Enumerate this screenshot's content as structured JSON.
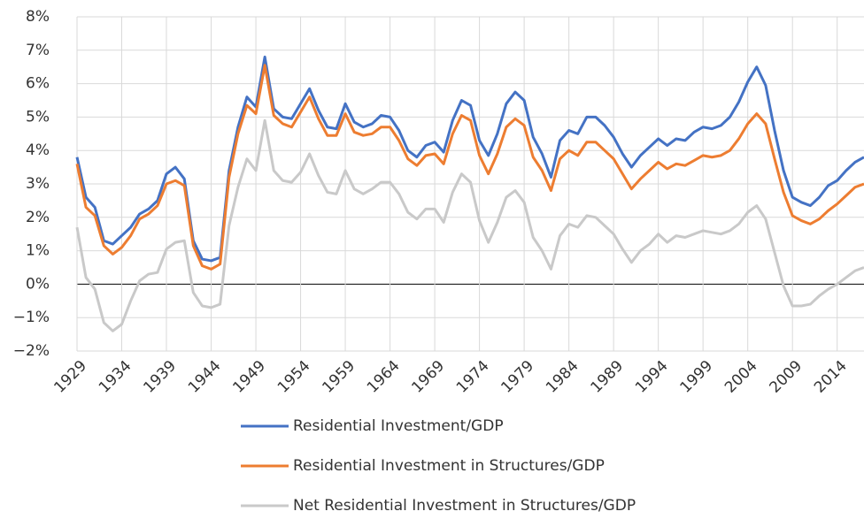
{
  "chart_data": {
    "type": "line",
    "x": [
      1929,
      1930,
      1931,
      1932,
      1933,
      1934,
      1935,
      1936,
      1937,
      1938,
      1939,
      1940,
      1941,
      1942,
      1943,
      1944,
      1945,
      1946,
      1947,
      1948,
      1949,
      1950,
      1951,
      1952,
      1953,
      1954,
      1955,
      1956,
      1957,
      1958,
      1959,
      1960,
      1961,
      1962,
      1963,
      1964,
      1965,
      1966,
      1967,
      1968,
      1969,
      1970,
      1971,
      1972,
      1973,
      1974,
      1975,
      1976,
      1977,
      1978,
      1979,
      1980,
      1981,
      1982,
      1983,
      1984,
      1985,
      1986,
      1987,
      1988,
      1989,
      1990,
      1991,
      1992,
      1993,
      1994,
      1995,
      1996,
      1997,
      1998,
      1999,
      2000,
      2001,
      2002,
      2003,
      2004,
      2005,
      2006,
      2007,
      2008,
      2009,
      2010,
      2011,
      2012,
      2013,
      2014,
      2015,
      2016,
      2017
    ],
    "series": [
      {
        "name": "Residential Investment/GDP",
        "color": "#4472c4",
        "values": [
          3.8,
          2.6,
          2.3,
          1.3,
          1.2,
          1.45,
          1.7,
          2.1,
          2.25,
          2.5,
          3.3,
          3.5,
          3.15,
          1.3,
          0.75,
          0.7,
          0.8,
          3.4,
          4.7,
          5.6,
          5.3,
          6.8,
          5.25,
          5.0,
          4.95,
          5.4,
          5.85,
          5.2,
          4.7,
          4.65,
          5.4,
          4.85,
          4.7,
          4.8,
          5.05,
          5.0,
          4.6,
          4.0,
          3.8,
          4.15,
          4.25,
          3.95,
          4.9,
          5.5,
          5.35,
          4.3,
          3.85,
          4.5,
          5.4,
          5.75,
          5.5,
          4.4,
          3.9,
          3.2,
          4.3,
          4.6,
          4.5,
          5.0,
          5.0,
          4.75,
          4.4,
          3.9,
          3.5,
          3.85,
          4.1,
          4.35,
          4.15,
          4.35,
          4.3,
          4.55,
          4.7,
          4.65,
          4.75,
          5.0,
          5.45,
          6.05,
          6.5,
          5.95,
          4.6,
          3.4,
          2.6,
          2.45,
          2.35,
          2.6,
          2.95,
          3.1,
          3.4,
          3.65,
          3.8
        ]
      },
      {
        "name": "Residential Investment in Structures/GDP",
        "color": "#ed7d31",
        "values": [
          3.6,
          2.3,
          2.05,
          1.15,
          0.9,
          1.1,
          1.45,
          1.95,
          2.1,
          2.35,
          3.0,
          3.1,
          2.95,
          1.15,
          0.55,
          0.45,
          0.6,
          3.2,
          4.5,
          5.35,
          5.1,
          6.55,
          5.05,
          4.8,
          4.7,
          5.15,
          5.6,
          4.95,
          4.45,
          4.45,
          5.1,
          4.55,
          4.45,
          4.5,
          4.7,
          4.7,
          4.3,
          3.75,
          3.55,
          3.85,
          3.9,
          3.6,
          4.5,
          5.05,
          4.9,
          3.85,
          3.3,
          3.9,
          4.7,
          4.95,
          4.75,
          3.8,
          3.4,
          2.8,
          3.75,
          4.0,
          3.85,
          4.25,
          4.25,
          4.0,
          3.75,
          3.3,
          2.85,
          3.15,
          3.4,
          3.65,
          3.45,
          3.6,
          3.55,
          3.7,
          3.85,
          3.8,
          3.85,
          4.0,
          4.35,
          4.8,
          5.1,
          4.8,
          3.75,
          2.75,
          2.05,
          1.9,
          1.8,
          1.95,
          2.2,
          2.4,
          2.65,
          2.9,
          3.0
        ]
      },
      {
        "name": "Net Residential Investment in Structures/GDP",
        "color": "#c9c9c9",
        "values": [
          1.7,
          0.2,
          -0.15,
          -1.15,
          -1.4,
          -1.2,
          -0.5,
          0.1,
          0.3,
          0.35,
          1.05,
          1.25,
          1.3,
          -0.25,
          -0.65,
          -0.7,
          -0.6,
          1.75,
          2.9,
          3.75,
          3.4,
          4.9,
          3.4,
          3.1,
          3.05,
          3.35,
          3.9,
          3.25,
          2.75,
          2.7,
          3.4,
          2.85,
          2.7,
          2.85,
          3.05,
          3.05,
          2.7,
          2.15,
          1.95,
          2.25,
          2.25,
          1.85,
          2.75,
          3.3,
          3.05,
          1.9,
          1.25,
          1.85,
          2.6,
          2.8,
          2.45,
          1.4,
          1.0,
          0.45,
          1.45,
          1.8,
          1.7,
          2.05,
          2.0,
          1.75,
          1.5,
          1.05,
          0.65,
          1.0,
          1.2,
          1.5,
          1.25,
          1.45,
          1.4,
          1.5,
          1.6,
          1.55,
          1.5,
          1.6,
          1.8,
          2.15,
          2.35,
          1.95,
          0.95,
          -0.05,
          -0.65,
          -0.65,
          -0.6,
          -0.35,
          -0.15,
          0.0,
          0.2,
          0.4,
          0.5
        ]
      }
    ],
    "xlim": [
      1929,
      2017
    ],
    "xticks": [
      1929,
      1934,
      1939,
      1944,
      1949,
      1954,
      1959,
      1964,
      1969,
      1974,
      1979,
      1984,
      1989,
      1994,
      1999,
      2004,
      2009,
      2014
    ],
    "ylim": [
      -2,
      8
    ],
    "yticks": [
      {
        "value": -2,
        "label": "−2%"
      },
      {
        "value": -1,
        "label": "−1%"
      },
      {
        "value": 0,
        "label": "0%"
      },
      {
        "value": 1,
        "label": "1%"
      },
      {
        "value": 2,
        "label": "2%"
      },
      {
        "value": 3,
        "label": "3%"
      },
      {
        "value": 4,
        "label": "4%"
      },
      {
        "value": 5,
        "label": "5%"
      },
      {
        "value": 6,
        "label": "6%"
      },
      {
        "value": 7,
        "label": "7%"
      },
      {
        "value": 8,
        "label": "8%"
      }
    ],
    "grid": true
  }
}
